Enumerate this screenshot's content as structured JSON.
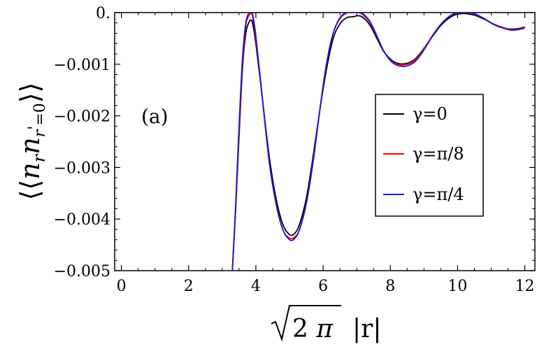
{
  "chart_data": {
    "type": "line",
    "xlabel": "√2π |r|",
    "ylabel": "⟨⟨n_r n_r'=0⟩⟩",
    "annotation": "(a)",
    "xlim": [
      -0.2,
      12.3
    ],
    "ylim": [
      -0.005,
      0.0
    ],
    "x_ticks": [
      0,
      2,
      4,
      6,
      8,
      10,
      12
    ],
    "x_tick_labels": [
      "0",
      "2",
      "4",
      "6",
      "8",
      "10",
      "12"
    ],
    "y_ticks": [
      0.0,
      -0.001,
      -0.002,
      -0.003,
      -0.004,
      -0.005
    ],
    "y_tick_labels": [
      "0.",
      "−0.001",
      "−0.002",
      "−0.003",
      "−0.004",
      "−0.005"
    ],
    "legend_placement": "right",
    "series": [
      {
        "name": "γ=0",
        "color": "#000000",
        "x": [
          3.3,
          3.4,
          3.5,
          3.6,
          3.7,
          3.8,
          3.85,
          3.9,
          4.0,
          4.2,
          4.4,
          4.6,
          4.8,
          5.0,
          5.15,
          5.3,
          5.5,
          5.7,
          5.9,
          6.1,
          6.3,
          6.5,
          6.7,
          6.9,
          7.05,
          7.2,
          7.4,
          7.6,
          7.8,
          8.0,
          8.2,
          8.45,
          8.7,
          8.9,
          9.1,
          9.3,
          9.5,
          9.7,
          9.9,
          10.1,
          10.25,
          10.5,
          10.8,
          11.1,
          11.4,
          11.6,
          11.8,
          12.0
        ],
        "y": [
          -0.005,
          -0.0038,
          -0.0024,
          -0.0011,
          -0.0004,
          -0.00018,
          -0.00015,
          -0.0002,
          -0.0006,
          -0.0017,
          -0.0028,
          -0.0036,
          -0.0041,
          -0.0043,
          -0.00428,
          -0.0041,
          -0.0036,
          -0.0028,
          -0.0019,
          -0.0011,
          -0.0005,
          -0.00022,
          -0.0001,
          -8e-05,
          -6e-05,
          -0.0001,
          -0.00025,
          -0.0005,
          -0.00075,
          -0.0009,
          -0.00098,
          -0.00099,
          -0.00092,
          -0.00078,
          -0.0006,
          -0.00042,
          -0.00025,
          -0.00013,
          -5e-05,
          -2e-05,
          -2e-05,
          -5e-05,
          -0.00013,
          -0.00023,
          -0.0003,
          -0.00032,
          -0.00031,
          -0.00028
        ]
      },
      {
        "name": "γ=π/8",
        "color": "#ff0000",
        "x": [
          3.3,
          3.4,
          3.5,
          3.6,
          3.7,
          3.8,
          3.85,
          3.9,
          4.0,
          4.2,
          4.4,
          4.6,
          4.8,
          5.0,
          5.15,
          5.3,
          5.5,
          5.7,
          5.9,
          6.1,
          6.3,
          6.5,
          6.7,
          6.9,
          7.05,
          7.2,
          7.4,
          7.6,
          7.8,
          8.0,
          8.2,
          8.45,
          8.7,
          8.9,
          9.1,
          9.3,
          9.5,
          9.7,
          9.9,
          10.1,
          10.25,
          10.5,
          10.8,
          11.1,
          11.4,
          11.6,
          11.8,
          12.0
        ],
        "y": [
          -0.005,
          -0.0038,
          -0.0023,
          -0.001,
          -0.00025,
          -5e-05,
          -2e-05,
          -7e-05,
          -0.0005,
          -0.0017,
          -0.0029,
          -0.0037,
          -0.0042,
          -0.00437,
          -0.00435,
          -0.0042,
          -0.0037,
          -0.0029,
          -0.0019,
          -0.001,
          -0.0004,
          -0.00012,
          -1e-05,
          0.0,
          0.0,
          -5e-05,
          -0.0002,
          -0.00046,
          -0.00074,
          -0.00092,
          -0.001,
          -0.00101,
          -0.00094,
          -0.0008,
          -0.0006,
          -0.0004,
          -0.00023,
          -0.0001,
          -2e-05,
          0.0,
          0.0,
          -3e-05,
          -0.00012,
          -0.00023,
          -0.0003,
          -0.00033,
          -0.00032,
          -0.00029
        ]
      },
      {
        "name": "γ=π/4",
        "color": "#1a1adc",
        "x": [
          3.3,
          3.4,
          3.5,
          3.6,
          3.7,
          3.8,
          3.85,
          3.9,
          4.0,
          4.2,
          4.4,
          4.6,
          4.8,
          5.0,
          5.15,
          5.3,
          5.5,
          5.7,
          5.9,
          6.1,
          6.3,
          6.5,
          6.7,
          6.9,
          7.05,
          7.2,
          7.4,
          7.6,
          7.8,
          8.0,
          8.2,
          8.45,
          8.7,
          8.9,
          9.1,
          9.3,
          9.5,
          9.7,
          9.9,
          10.1,
          10.25,
          10.5,
          10.8,
          11.1,
          11.4,
          11.6,
          11.8,
          12.0
        ],
        "y": [
          -0.005,
          -0.0037,
          -0.0022,
          -0.0009,
          -0.0002,
          0.0,
          0.0,
          -3e-05,
          -0.00045,
          -0.0017,
          -0.0029,
          -0.0037,
          -0.0042,
          -0.0044,
          -0.00438,
          -0.0042,
          -0.0037,
          -0.0029,
          -0.0019,
          -0.001,
          -0.0004,
          -0.0001,
          0.0,
          0.0,
          0.0,
          -3e-05,
          -0.00018,
          -0.00045,
          -0.00074,
          -0.00093,
          -0.00102,
          -0.00104,
          -0.00097,
          -0.00082,
          -0.00062,
          -0.00041,
          -0.00023,
          -0.0001,
          -2e-05,
          0.0,
          0.0,
          -2e-05,
          -0.00012,
          -0.00024,
          -0.00031,
          -0.00034,
          -0.00033,
          -0.0003
        ]
      }
    ]
  }
}
